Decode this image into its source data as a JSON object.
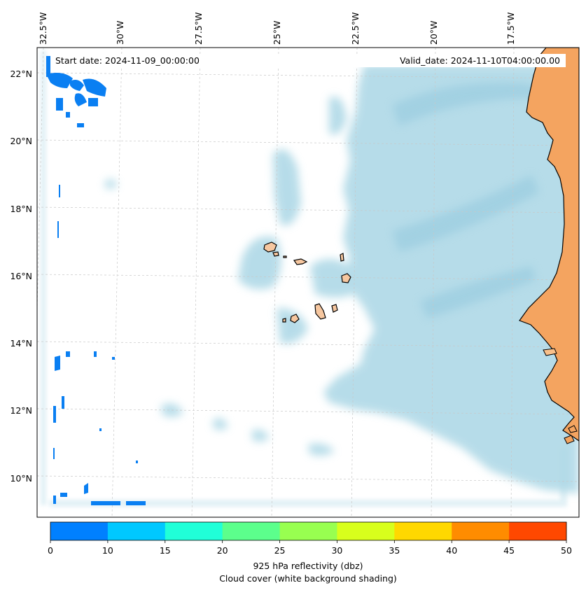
{
  "map": {
    "start_date": "Start date: 2024-11-09_00:00:00",
    "valid_date": "Valid_date: 2024-11-10T04:00:00.00",
    "lon_labels": [
      "32.5°W",
      "30°W",
      "27.5°W",
      "25°W",
      "22.5°W",
      "20°W",
      "17.5°W"
    ],
    "lat_labels": [
      "22°N",
      "20°N",
      "18°N",
      "16°N",
      "14°N",
      "12°N",
      "10°N"
    ],
    "land_color": "#f4a460",
    "island_color": "#f6c7a0",
    "cloud_color": "#add8e6",
    "reflectivity_color": "#0a7ff2",
    "gridline_color": "#c8c8c8"
  },
  "colorbar": {
    "ticks": [
      "0",
      "10",
      "15",
      "20",
      "25",
      "30",
      "35",
      "40",
      "45",
      "50"
    ],
    "colors": [
      "#0080ff",
      "#00c8ff",
      "#20ffd8",
      "#5cff8c",
      "#98ff50",
      "#d8ff1c",
      "#ffd800",
      "#ff8c00",
      "#ff4800"
    ],
    "label_line1": "925 hPa reflectivity (dbz)",
    "label_line2": "Cloud cover (white background shading)"
  }
}
